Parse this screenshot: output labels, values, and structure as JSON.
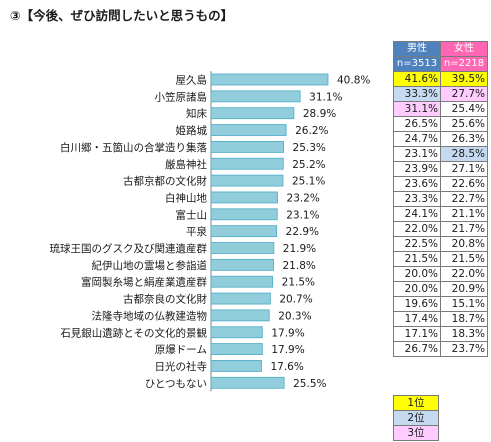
{
  "title": "③【今後、ぜひ訪問したいと思うもの】",
  "colors": {
    "bar_fill": "#92cddc",
    "bar_stroke": "#4bacc6",
    "male_header": "#4f81bd",
    "female_header": "#ff66b3",
    "rank1": "#ffff00",
    "rank2": "#c5d9f1",
    "rank3": "#ffccff"
  },
  "table": {
    "male_label": "男性",
    "female_label": "女性",
    "male_n": "n=3513",
    "female_n": "n=2218",
    "rows": [
      {
        "male": "41.6%",
        "female": "39.5%",
        "male_rank": 1,
        "female_rank": 1
      },
      {
        "male": "33.3%",
        "female": "27.7%",
        "male_rank": 2,
        "female_rank": 3
      },
      {
        "male": "31.1%",
        "female": "25.4%",
        "male_rank": 3,
        "female_rank": 0
      },
      {
        "male": "26.5%",
        "female": "25.6%",
        "male_rank": 0,
        "female_rank": 0
      },
      {
        "male": "24.7%",
        "female": "26.3%",
        "male_rank": 0,
        "female_rank": 0
      },
      {
        "male": "23.1%",
        "female": "28.5%",
        "male_rank": 0,
        "female_rank": 2
      },
      {
        "male": "23.9%",
        "female": "27.1%",
        "male_rank": 0,
        "female_rank": 0
      },
      {
        "male": "23.6%",
        "female": "22.6%",
        "male_rank": 0,
        "female_rank": 0
      },
      {
        "male": "23.3%",
        "female": "22.7%",
        "male_rank": 0,
        "female_rank": 0
      },
      {
        "male": "24.1%",
        "female": "21.1%",
        "male_rank": 0,
        "female_rank": 0
      },
      {
        "male": "22.0%",
        "female": "21.7%",
        "male_rank": 0,
        "female_rank": 0
      },
      {
        "male": "22.5%",
        "female": "20.8%",
        "male_rank": 0,
        "female_rank": 0
      },
      {
        "male": "21.5%",
        "female": "21.5%",
        "male_rank": 0,
        "female_rank": 0
      },
      {
        "male": "20.0%",
        "female": "22.0%",
        "male_rank": 0,
        "female_rank": 0
      },
      {
        "male": "20.0%",
        "female": "20.9%",
        "male_rank": 0,
        "female_rank": 0
      },
      {
        "male": "19.6%",
        "female": "15.1%",
        "male_rank": 0,
        "female_rank": 0
      },
      {
        "male": "17.4%",
        "female": "18.7%",
        "male_rank": 0,
        "female_rank": 0
      },
      {
        "male": "17.1%",
        "female": "18.3%",
        "male_rank": 0,
        "female_rank": 0
      },
      {
        "male": "26.7%",
        "female": "23.7%",
        "male_rank": 0,
        "female_rank": 0
      }
    ]
  },
  "legend": {
    "rank1": "1位",
    "rank2": "2位",
    "rank3": "3位"
  },
  "chart_data": {
    "type": "bar",
    "orientation": "horizontal",
    "categories": [
      "屋久島",
      "小笠原諸島",
      "知床",
      "姫路城",
      "白川郷・五箇山の合掌造り集落",
      "厳島神社",
      "古都京都の文化財",
      "白神山地",
      "富士山",
      "平泉",
      "琉球王国のグスク及び関連遺産群",
      "紀伊山地の霊場と参詣道",
      "富岡製糸場と絹産業遺産群",
      "古都奈良の文化財",
      "法隆寺地域の仏教建造物",
      "石見銀山遺跡とその文化的景観",
      "原爆ドーム",
      "日光の社寺",
      "ひとつもない"
    ],
    "values": [
      40.8,
      31.1,
      28.9,
      26.2,
      25.3,
      25.2,
      25.1,
      23.2,
      23.1,
      22.9,
      21.9,
      21.8,
      21.5,
      20.7,
      20.3,
      17.9,
      17.9,
      17.6,
      25.5
    ],
    "value_labels": [
      "40.8%",
      "31.1%",
      "28.9%",
      "26.2%",
      "25.3%",
      "25.2%",
      "25.1%",
      "23.2%",
      "23.1%",
      "22.9%",
      "21.9%",
      "21.8%",
      "21.5%",
      "20.7%",
      "20.3%",
      "17.9%",
      "17.9%",
      "17.6%",
      "25.5%"
    ],
    "xlim": [
      0,
      50
    ],
    "grid": false,
    "legend": "none"
  }
}
